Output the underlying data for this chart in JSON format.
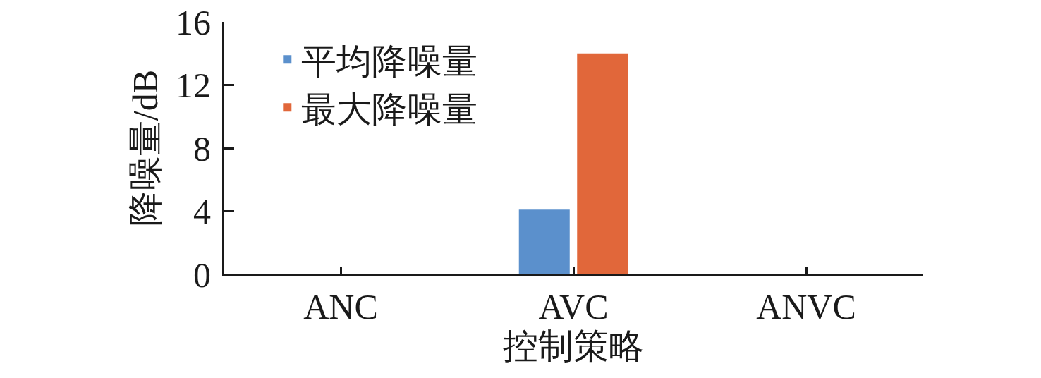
{
  "chart_data": {
    "type": "bar",
    "xlabel": "控制策略",
    "ylabel": "降噪量/dB",
    "categories": [
      "ANC",
      "AVC",
      "ANVC"
    ],
    "series": [
      {
        "name": "平均降噪量",
        "color": "#5b90cc",
        "values": [
          null,
          4.1,
          null
        ]
      },
      {
        "name": "最大降噪量",
        "color": "#e1673a",
        "values": [
          null,
          14.0,
          null
        ]
      }
    ],
    "ylim": [
      0,
      16
    ],
    "yticks": [
      0,
      4,
      8,
      12,
      16
    ],
    "legend": "top left"
  }
}
